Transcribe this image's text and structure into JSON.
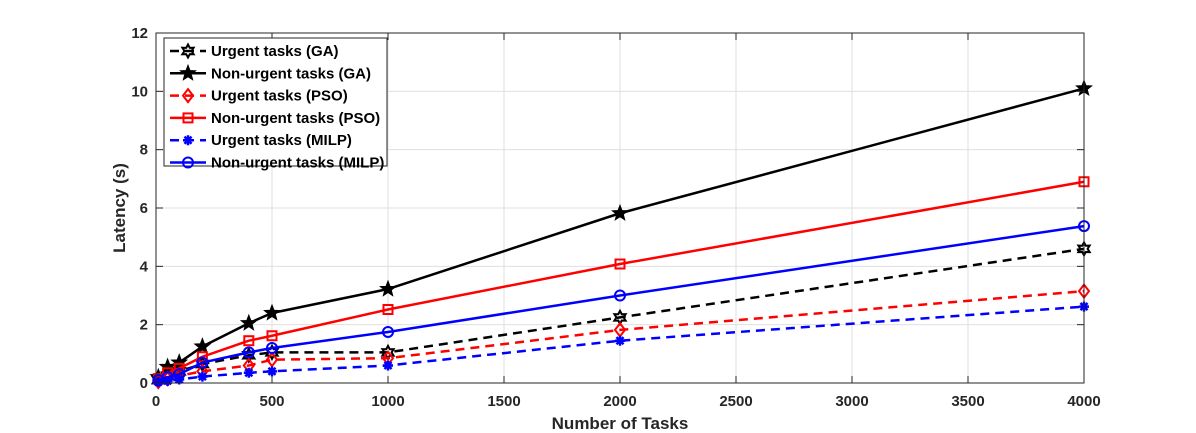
{
  "chart_data": {
    "type": "line",
    "title": "",
    "xlabel": "Number of Tasks",
    "ylabel": "Latency (s)",
    "xlim": [
      0,
      4000
    ],
    "ylim": [
      0,
      12
    ],
    "xticks": [
      0,
      500,
      1000,
      1500,
      2000,
      2500,
      3000,
      3500,
      4000
    ],
    "yticks": [
      0,
      2,
      4,
      6,
      8,
      10,
      12
    ],
    "grid": true,
    "legend_position": "top-left",
    "x": [
      10,
      50,
      100,
      200,
      400,
      500,
      1000,
      2000,
      4000
    ],
    "series": [
      {
        "name": "Urgent tasks (GA)",
        "color": "#000000",
        "dash": "dashed",
        "marker": "hexagram",
        "values": [
          0.1,
          0.25,
          0.4,
          0.65,
          0.95,
          1.05,
          1.05,
          2.25,
          4.6
        ]
      },
      {
        "name": "Non-urgent tasks (GA)",
        "color": "#000000",
        "dash": "solid",
        "marker": "star",
        "values": [
          0.2,
          0.55,
          0.7,
          1.25,
          2.05,
          2.4,
          3.22,
          5.82,
          10.1
        ]
      },
      {
        "name": "Urgent tasks (PSO)",
        "color": "#ff0000",
        "dash": "dashed",
        "marker": "diamond",
        "values": [
          0.05,
          0.15,
          0.25,
          0.4,
          0.6,
          0.8,
          0.85,
          1.82,
          3.15
        ]
      },
      {
        "name": "Non-urgent tasks (PSO)",
        "color": "#ff0000",
        "dash": "solid",
        "marker": "square",
        "values": [
          0.15,
          0.35,
          0.5,
          0.9,
          1.45,
          1.62,
          2.52,
          4.08,
          6.9
        ]
      },
      {
        "name": "Urgent tasks (MILP)",
        "color": "#0000ff",
        "dash": "dashed",
        "marker": "asterisk",
        "values": [
          0.03,
          0.07,
          0.12,
          0.22,
          0.35,
          0.4,
          0.6,
          1.45,
          2.62
        ]
      },
      {
        "name": "Non-urgent tasks (MILP)",
        "color": "#0000ff",
        "dash": "solid",
        "marker": "circle",
        "values": [
          0.1,
          0.2,
          0.3,
          0.7,
          1.05,
          1.2,
          1.75,
          3.0,
          5.38
        ]
      }
    ]
  }
}
